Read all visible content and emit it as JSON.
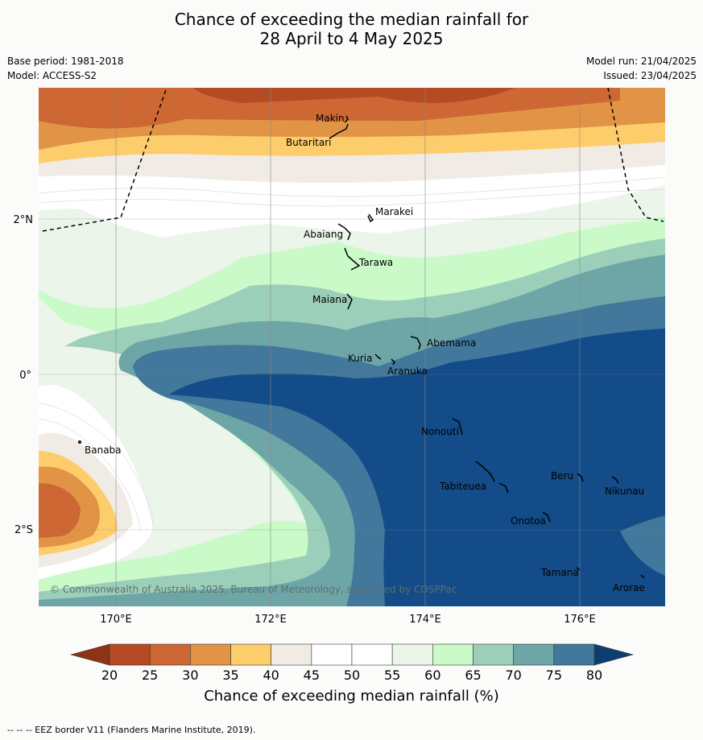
{
  "title_line1": "Chance of exceeding the median rainfall for",
  "title_line2": "28 April to 4 May 2025",
  "base_period": "Base period: 1981-2018",
  "model": "Model: ACCESS-S2",
  "model_run": "Model run: 21/04/2025",
  "issued": "Issued: 23/04/2025",
  "lat_labels": [
    "2°N",
    "0°",
    "2°S"
  ],
  "lon_labels": [
    "170°E",
    "172°E",
    "174°E",
    "176°E"
  ],
  "copyright": "© Commonwealth of Australia 2025, Bureau of Meteorology, supported by COSPPac",
  "colorbar": {
    "ticks": [
      "20",
      "25",
      "30",
      "35",
      "40",
      "45",
      "50",
      "55",
      "60",
      "65",
      "70",
      "75",
      "80"
    ],
    "colors": [
      "#b54b24",
      "#cd6734",
      "#e19446",
      "#fdcd6c",
      "#f1ebe6",
      "#ffffff",
      "#ffffff",
      "#ebf5ea",
      "#c9fac8",
      "#9ccfba",
      "#6ea6a8",
      "#41789c",
      "#134c88"
    ],
    "label": "Chance of exceeding median rainfall (%)"
  },
  "places": [
    "Makin",
    "Butaritari",
    "Marakei",
    "Abaiang",
    "Tarawa",
    "Maiana",
    "Abemama",
    "Kuria",
    "Aranuka",
    "Banaba",
    "Nonouti",
    "Beru",
    "Tabiteuea",
    "Nikunau",
    "Onotoa",
    "Tamana",
    "Arorae"
  ],
  "footnote": "--  --  -- EEZ border V11 (Flanders Marine Institute, 2019)."
}
